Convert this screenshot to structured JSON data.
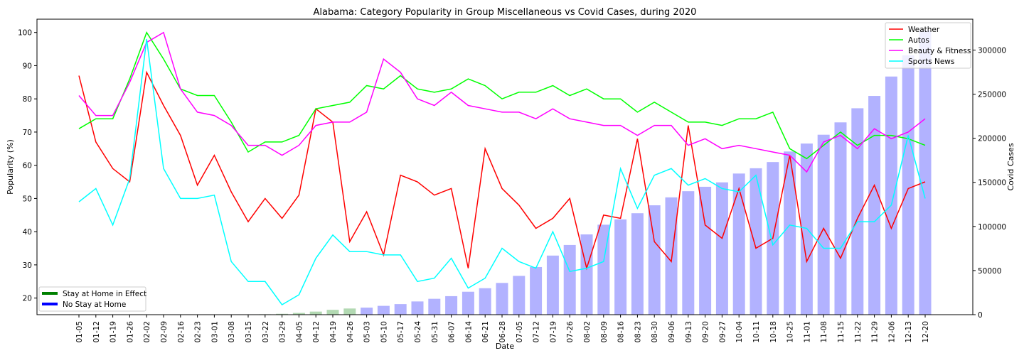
{
  "chart_data": {
    "type": "line",
    "title": "Alabama: Category Popularity in Group Miscellaneous vs Covid Cases, during 2020",
    "xlabel": "Date",
    "ylabel": "Popularity (%)",
    "y2label": "Covid Cases",
    "ylim": [
      15,
      104
    ],
    "y2lim": [
      0,
      335000
    ],
    "yticks": [
      20,
      30,
      40,
      50,
      60,
      70,
      80,
      90,
      100
    ],
    "y2ticks": [
      0,
      50000,
      100000,
      150000,
      200000,
      250000,
      300000
    ],
    "x": [
      "01-05",
      "01-12",
      "01-19",
      "01-26",
      "02-02",
      "02-09",
      "02-16",
      "02-23",
      "03-01",
      "03-08",
      "03-15",
      "03-22",
      "03-29",
      "04-05",
      "04-12",
      "04-19",
      "04-26",
      "05-03",
      "05-10",
      "05-17",
      "05-24",
      "05-31",
      "06-07",
      "06-14",
      "06-21",
      "06-28",
      "07-05",
      "07-12",
      "07-19",
      "07-26",
      "08-02",
      "08-09",
      "08-16",
      "08-23",
      "08-30",
      "09-06",
      "09-13",
      "09-20",
      "09-27",
      "10-04",
      "10-11",
      "10-18",
      "10-25",
      "11-01",
      "11-08",
      "11-15",
      "11-22",
      "11-29",
      "12-06",
      "12-13",
      "12-20"
    ],
    "series": [
      {
        "name": "Weather",
        "color": "#ff0000",
        "values": [
          87,
          67,
          59,
          55,
          88,
          78,
          69,
          54,
          63,
          52,
          43,
          50,
          44,
          51,
          77,
          73,
          37,
          46,
          33,
          57,
          55,
          51,
          53,
          29,
          65,
          53,
          48,
          41,
          44,
          50,
          29,
          45,
          44,
          68,
          37,
          31,
          72,
          42,
          38,
          53,
          35,
          38,
          63,
          31,
          41,
          32,
          44,
          54,
          41,
          53,
          55
        ]
      },
      {
        "name": "Autos",
        "color": "#00ff00",
        "values": [
          71,
          74,
          74,
          86,
          100,
          92,
          83,
          81,
          81,
          73,
          64,
          67,
          67,
          69,
          77,
          78,
          79,
          84,
          83,
          87,
          83,
          82,
          83,
          86,
          84,
          80,
          82,
          82,
          84,
          81,
          83,
          80,
          80,
          76,
          79,
          76,
          73,
          73,
          72,
          74,
          74,
          76,
          65,
          62,
          66,
          70,
          66,
          69,
          69,
          68,
          66
        ]
      },
      {
        "name": "Beauty & Fitness",
        "color": "#ff00ff",
        "values": [
          81,
          75,
          75,
          85,
          97,
          100,
          83,
          76,
          75,
          72,
          66,
          66,
          63,
          66,
          72,
          73,
          73,
          76,
          92,
          88,
          80,
          78,
          82,
          78,
          77,
          76,
          76,
          74,
          77,
          74,
          73,
          72,
          72,
          69,
          72,
          72,
          66,
          68,
          65,
          66,
          65,
          64,
          63,
          58,
          67,
          69,
          65,
          71,
          68,
          70,
          74
        ]
      },
      {
        "name": "Sports News",
        "color": "#00ffff",
        "values": [
          49,
          53,
          42,
          56,
          98,
          59,
          50,
          50,
          51,
          31,
          25,
          25,
          18,
          21,
          32,
          39,
          34,
          34,
          33,
          33,
          25,
          26,
          32,
          23,
          26,
          35,
          31,
          29,
          40,
          28,
          29,
          31,
          59,
          47,
          57,
          59,
          54,
          56,
          53,
          52,
          57,
          36,
          42,
          41,
          35,
          35,
          43,
          43,
          48,
          69,
          50
        ]
      }
    ],
    "bars": {
      "name": "Covid Cases",
      "values": [
        0,
        0,
        0,
        0,
        0,
        0,
        0,
        0,
        0,
        0,
        0,
        500,
        1000,
        2000,
        3500,
        5500,
        7000,
        8000,
        10000,
        12000,
        15000,
        18000,
        21000,
        26000,
        30000,
        36000,
        44000,
        54000,
        67000,
        79000,
        91000,
        102000,
        108000,
        115000,
        124000,
        133000,
        140000,
        145000,
        150000,
        160000,
        166000,
        173000,
        185000,
        194000,
        204000,
        218000,
        234000,
        248000,
        270000,
        294000,
        322000
      ],
      "stay_home_color": "#008000",
      "no_stay_color": "#0000ff",
      "stay_home_range": [
        11,
        16
      ]
    },
    "legend": {
      "series_position": "top-right",
      "status_position": "bottom-left",
      "status_items": [
        {
          "label": "Stay at Home in Effect",
          "color": "#008000"
        },
        {
          "label": "No Stay at Home",
          "color": "#0000ff"
        }
      ]
    }
  }
}
